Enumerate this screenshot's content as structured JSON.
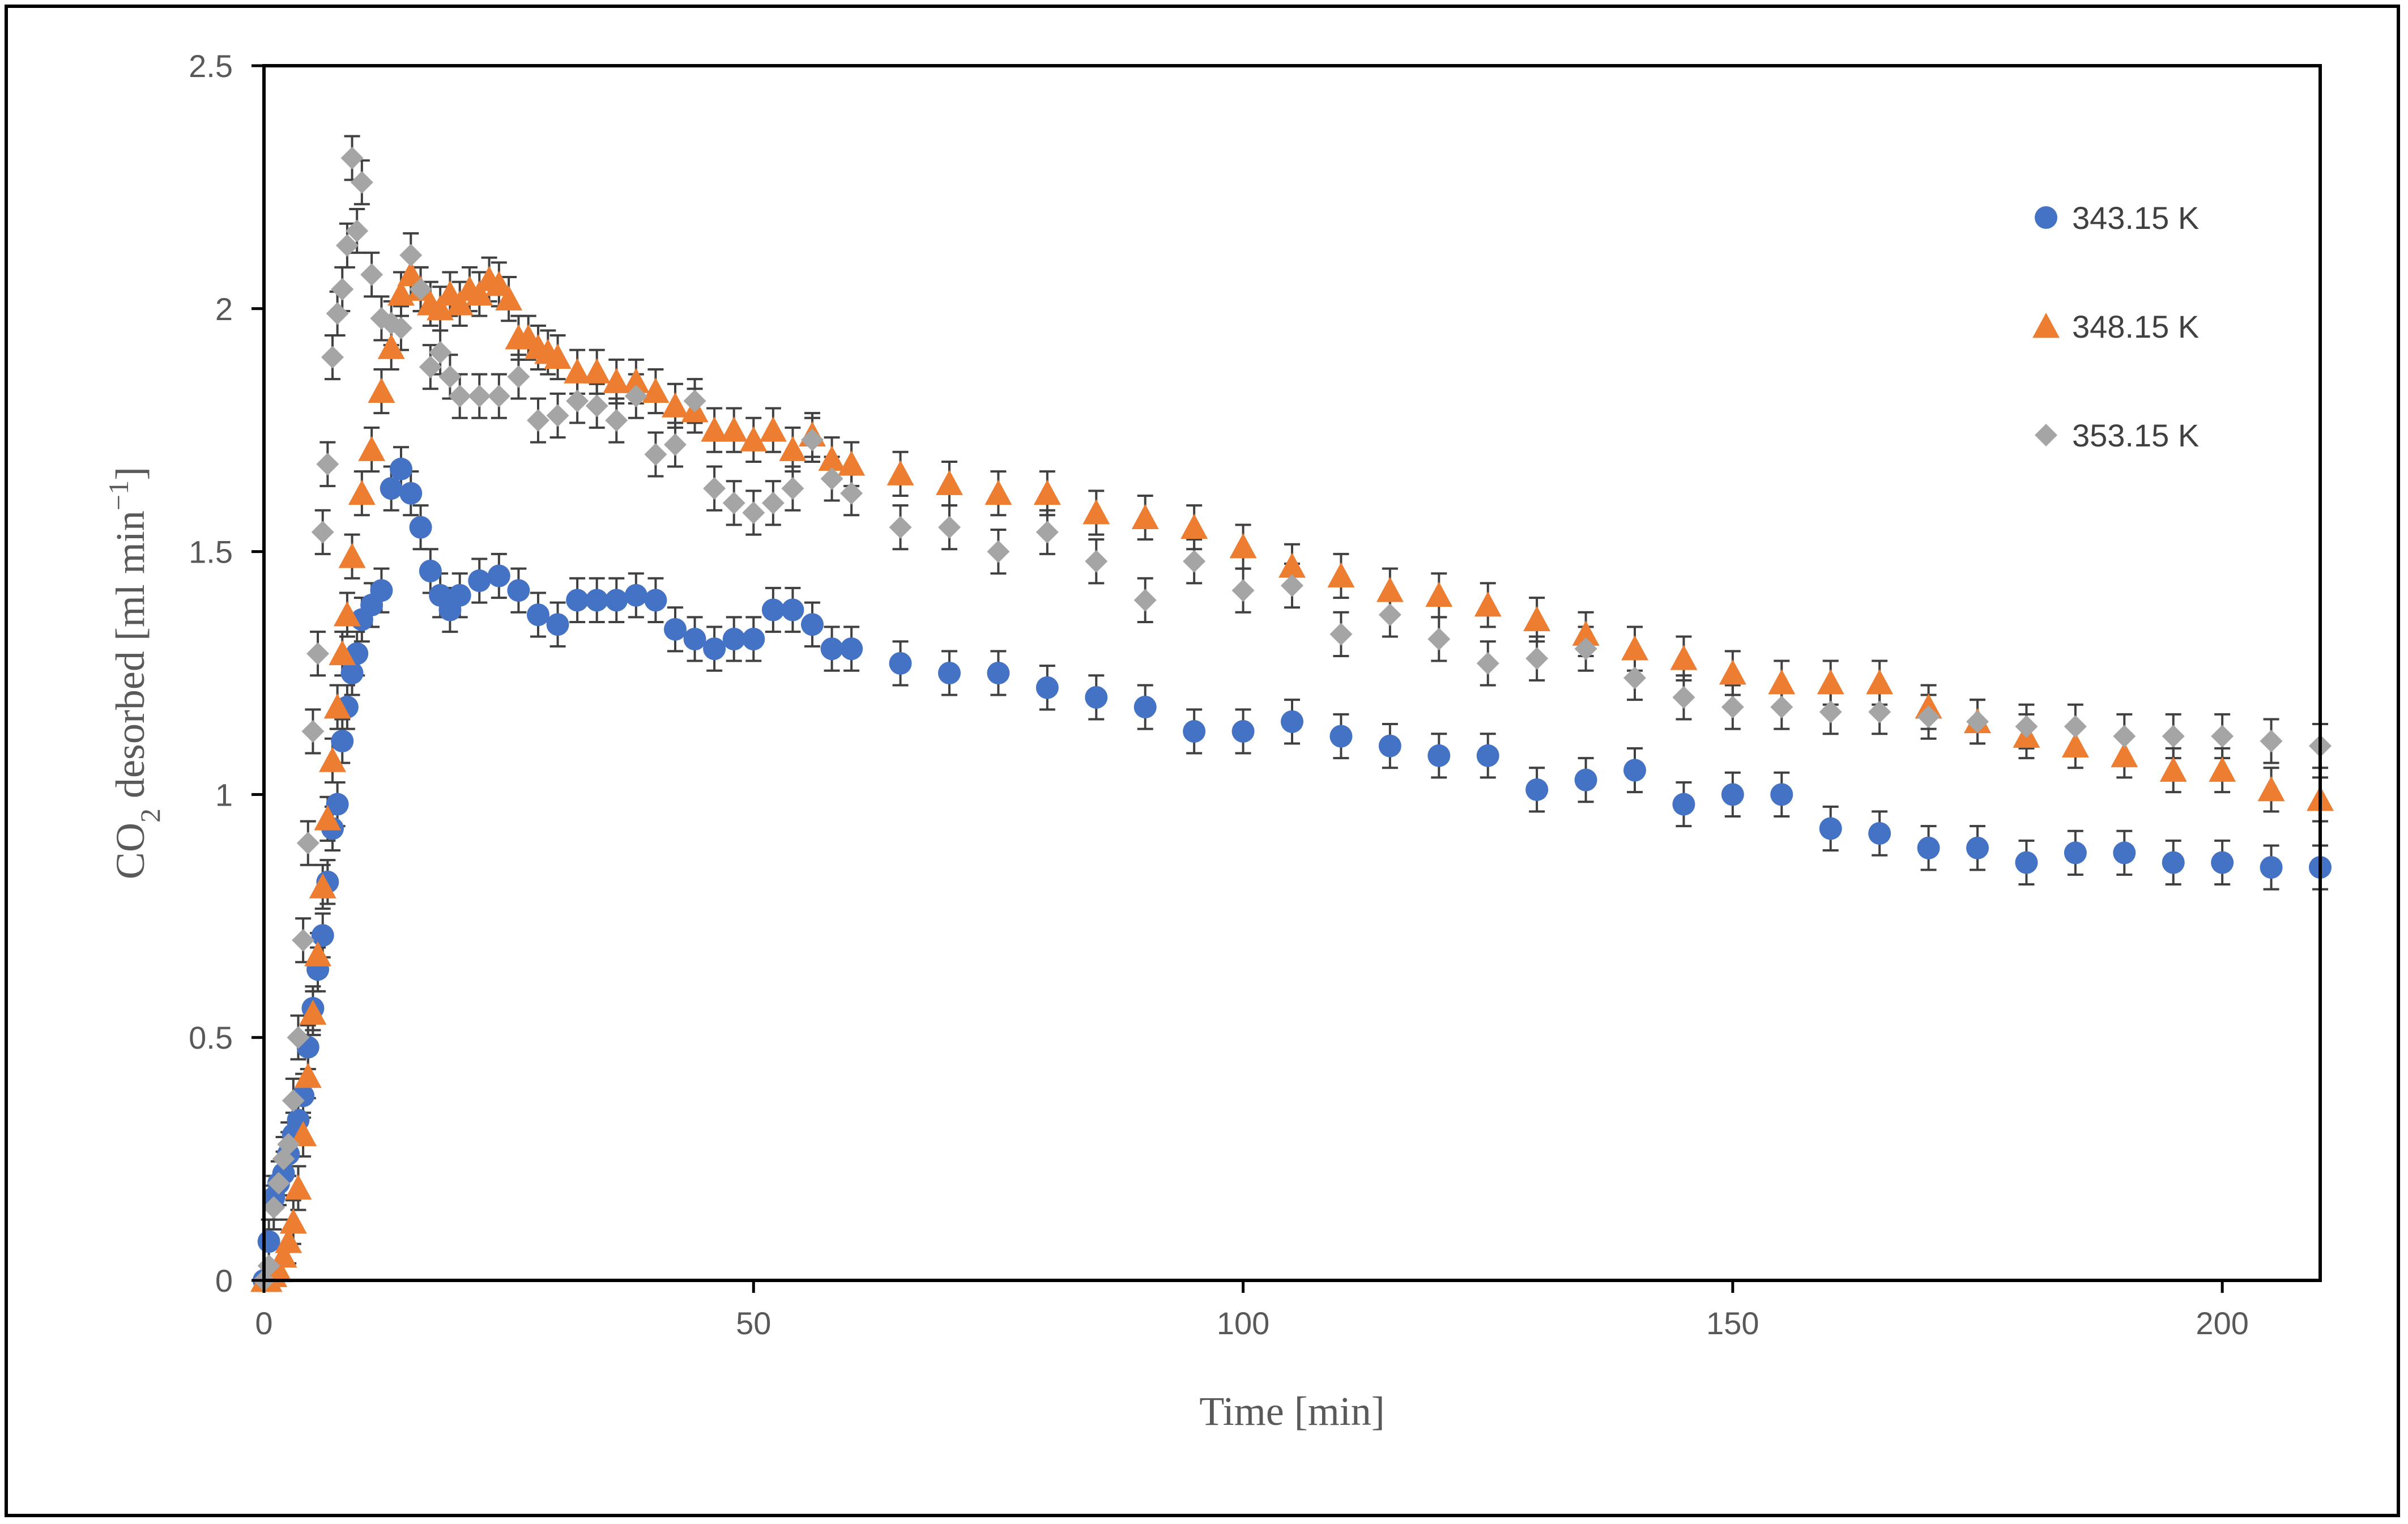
{
  "chart_data": {
    "type": "scatter",
    "title": "",
    "xlabel": "Time [min]",
    "ylabel_parts": {
      "main": "CO",
      "sub": "2",
      "rest": " desorbed [ml min",
      "sup": "−1",
      "end": "]"
    },
    "xlim": [
      0,
      210
    ],
    "ylim": [
      0,
      2.5
    ],
    "xticks": [
      0,
      50,
      100,
      150,
      200
    ],
    "yticks": [
      0,
      0.5,
      1,
      1.5,
      2,
      2.5
    ],
    "ytick_labels": [
      "0",
      "0.5",
      "1",
      "1.5",
      "2",
      "2.5"
    ],
    "grid": false,
    "legend_position": "top-right",
    "error_bar_color": "#404040",
    "series": [
      {
        "name": "343.15 K",
        "marker": "circle",
        "color": "#4472C4",
        "x": [
          0,
          0.5,
          1,
          1.5,
          2,
          2.5,
          3,
          3.5,
          4,
          4.5,
          5,
          5.5,
          6,
          6.5,
          7,
          7.5,
          8,
          8.5,
          9,
          9.5,
          10,
          11,
          12,
          13,
          14,
          15,
          16,
          17,
          18,
          19,
          20,
          22,
          24,
          26,
          28,
          30,
          32,
          34,
          36,
          38,
          40,
          42,
          44,
          46,
          48,
          50,
          52,
          54,
          56,
          58,
          60,
          65,
          70,
          75,
          80,
          85,
          90,
          95,
          100,
          105,
          110,
          115,
          120,
          125,
          130,
          135,
          140,
          145,
          150,
          155,
          160,
          165,
          170,
          175,
          180,
          185,
          190,
          195,
          200,
          205,
          210
        ],
        "y": [
          0,
          0.08,
          0.17,
          0.2,
          0.22,
          0.26,
          0.3,
          0.33,
          0.38,
          0.48,
          0.56,
          0.64,
          0.71,
          0.82,
          0.93,
          0.98,
          1.11,
          1.18,
          1.25,
          1.29,
          1.36,
          1.39,
          1.42,
          1.63,
          1.67,
          1.62,
          1.55,
          1.46,
          1.41,
          1.38,
          1.41,
          1.44,
          1.45,
          1.42,
          1.37,
          1.35,
          1.4,
          1.4,
          1.4,
          1.41,
          1.4,
          1.34,
          1.32,
          1.3,
          1.32,
          1.32,
          1.38,
          1.38,
          1.35,
          1.3,
          1.3,
          1.27,
          1.25,
          1.25,
          1.22,
          1.2,
          1.18,
          1.13,
          1.13,
          1.15,
          1.12,
          1.1,
          1.08,
          1.08,
          1.01,
          1.03,
          1.05,
          0.98,
          1.0,
          1.0,
          0.93,
          0.92,
          0.89,
          0.89,
          0.86,
          0.88,
          0.88,
          0.86,
          0.86,
          0.85,
          0.85
        ],
        "err": 0.045
      },
      {
        "name": "348.15 K",
        "marker": "triangle",
        "color": "#ED7D31",
        "x": [
          0,
          0.5,
          1,
          1.5,
          2,
          2.5,
          3,
          3.5,
          4,
          4.5,
          5,
          5.5,
          6,
          6.5,
          7,
          7.5,
          8,
          8.5,
          9,
          10,
          11,
          12,
          13,
          14,
          15,
          16,
          17,
          18,
          19,
          20,
          21,
          22,
          23,
          24,
          25,
          26,
          27,
          28,
          29,
          30,
          32,
          34,
          36,
          38,
          40,
          42,
          44,
          46,
          48,
          50,
          52,
          54,
          56,
          58,
          60,
          65,
          70,
          75,
          80,
          85,
          90,
          95,
          100,
          105,
          110,
          115,
          120,
          125,
          130,
          135,
          140,
          145,
          150,
          155,
          160,
          165,
          170,
          175,
          180,
          185,
          190,
          195,
          200,
          205,
          210
        ],
        "y": [
          0,
          0,
          0.01,
          0.02,
          0.05,
          0.08,
          0.12,
          0.19,
          0.3,
          0.42,
          0.55,
          0.67,
          0.81,
          0.95,
          1.07,
          1.18,
          1.29,
          1.37,
          1.49,
          1.62,
          1.71,
          1.83,
          1.92,
          2.03,
          2.07,
          2.04,
          2.01,
          2.0,
          2.03,
          2.01,
          2.04,
          2.03,
          2.06,
          2.05,
          2.02,
          1.94,
          1.94,
          1.92,
          1.91,
          1.9,
          1.87,
          1.87,
          1.85,
          1.85,
          1.83,
          1.8,
          1.79,
          1.75,
          1.75,
          1.73,
          1.75,
          1.71,
          1.74,
          1.69,
          1.68,
          1.66,
          1.64,
          1.62,
          1.62,
          1.58,
          1.57,
          1.55,
          1.51,
          1.47,
          1.45,
          1.42,
          1.41,
          1.39,
          1.36,
          1.33,
          1.3,
          1.28,
          1.25,
          1.23,
          1.23,
          1.23,
          1.18,
          1.15,
          1.12,
          1.1,
          1.08,
          1.05,
          1.05,
          1.01,
          0.99
        ],
        "err": 0.045
      },
      {
        "name": "353.15 K",
        "marker": "diamond",
        "color": "#A5A5A5",
        "x": [
          0,
          0.5,
          1,
          1.5,
          2,
          2.5,
          3,
          3.5,
          4,
          4.5,
          5,
          5.5,
          6,
          6.5,
          7,
          7.5,
          8,
          8.5,
          9,
          9.5,
          10,
          11,
          12,
          13,
          14,
          15,
          16,
          17,
          18,
          19,
          20,
          22,
          24,
          26,
          28,
          30,
          32,
          34,
          36,
          38,
          40,
          42,
          44,
          46,
          48,
          50,
          52,
          54,
          56,
          58,
          60,
          65,
          70,
          75,
          80,
          85,
          90,
          95,
          100,
          105,
          110,
          115,
          120,
          125,
          130,
          135,
          140,
          145,
          150,
          155,
          160,
          165,
          170,
          175,
          180,
          185,
          190,
          195,
          200,
          205,
          210
        ],
        "y": [
          0,
          0.03,
          0.15,
          0.2,
          0.25,
          0.28,
          0.37,
          0.5,
          0.7,
          0.9,
          1.13,
          1.29,
          1.54,
          1.68,
          1.9,
          1.99,
          2.04,
          2.13,
          2.31,
          2.16,
          2.26,
          2.07,
          1.98,
          1.97,
          1.96,
          2.11,
          2.04,
          1.88,
          1.91,
          1.86,
          1.82,
          1.82,
          1.82,
          1.86,
          1.77,
          1.78,
          1.81,
          1.8,
          1.77,
          1.82,
          1.7,
          1.72,
          1.81,
          1.63,
          1.6,
          1.58,
          1.6,
          1.63,
          1.73,
          1.65,
          1.62,
          1.55,
          1.55,
          1.5,
          1.54,
          1.48,
          1.4,
          1.48,
          1.42,
          1.43,
          1.33,
          1.37,
          1.32,
          1.27,
          1.28,
          1.3,
          1.24,
          1.2,
          1.18,
          1.18,
          1.17,
          1.17,
          1.16,
          1.15,
          1.14,
          1.14,
          1.12,
          1.12,
          1.12,
          1.11,
          1.1
        ],
        "err": 0.045
      }
    ]
  }
}
